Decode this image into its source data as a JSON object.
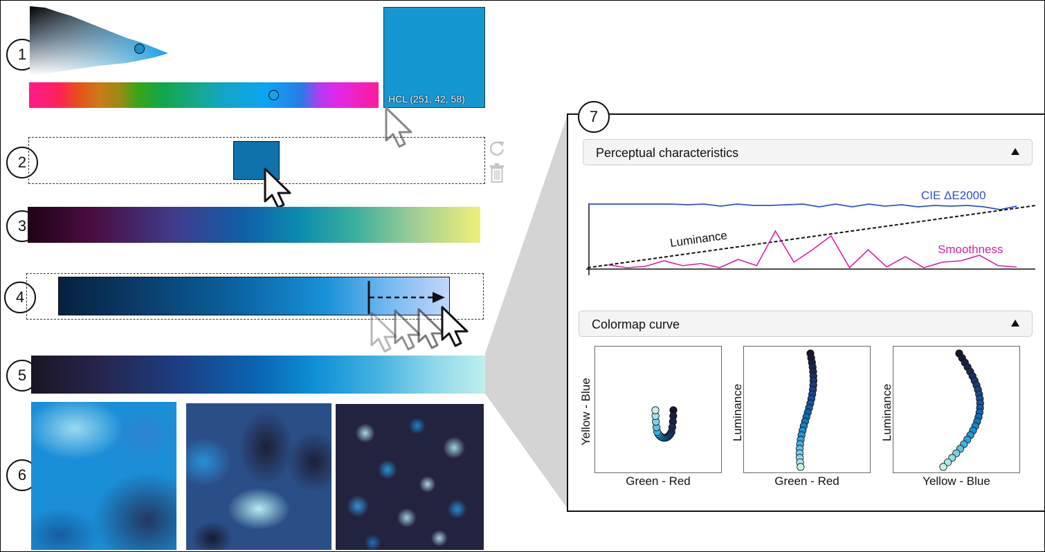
{
  "steps": [
    "1",
    "2",
    "3",
    "4",
    "5",
    "6",
    "7"
  ],
  "color_picker": {
    "hcl_label": "HCL (251, 42, 58)",
    "selected_color": "#1598d2"
  },
  "colormap_slot": {
    "selected_color": "#0f72ad",
    "reset_icon": "refresh-icon",
    "delete_icon": "trash-icon"
  },
  "panel": {
    "perceptual": {
      "title": "Perceptual characteristics",
      "labels": {
        "cie": "CIE ΔE2000",
        "luminance": "Luminance",
        "smoothness": "Smoothness"
      },
      "colors": {
        "cie": "#2f4fd6",
        "smoothness": "#d61fa8",
        "luminance": "#111111"
      },
      "cie_values": [
        0.94,
        0.94,
        0.94,
        0.94,
        0.94,
        0.94,
        0.93,
        0.94,
        0.91,
        0.94,
        0.92,
        0.92,
        0.93,
        0.94,
        0.9,
        0.94,
        0.9,
        0.94,
        0.91,
        0.93,
        0.9,
        0.92,
        0.91,
        0.92,
        0.9,
        0.86,
        0.91
      ],
      "luminance_values": [
        0.02,
        0.92
      ],
      "smoothness_values": [
        0.06,
        0.02,
        0.04,
        0.12,
        0.05,
        0.08,
        0.02,
        0.14,
        0.05,
        0.55,
        0.1,
        0.28,
        0.48,
        0.02,
        0.28,
        0.03,
        0.18,
        0.02,
        0.1,
        0.12,
        0.2,
        0.05,
        0.03
      ]
    },
    "curve": {
      "title": "Colormap curve",
      "plots": [
        {
          "xlabel": "Green - Red",
          "ylabel": "Yellow - Blue"
        },
        {
          "xlabel": "Green - Red",
          "ylabel": "Luminance"
        },
        {
          "xlabel": "Yellow - Blue",
          "ylabel": "Luminance"
        }
      ]
    }
  }
}
